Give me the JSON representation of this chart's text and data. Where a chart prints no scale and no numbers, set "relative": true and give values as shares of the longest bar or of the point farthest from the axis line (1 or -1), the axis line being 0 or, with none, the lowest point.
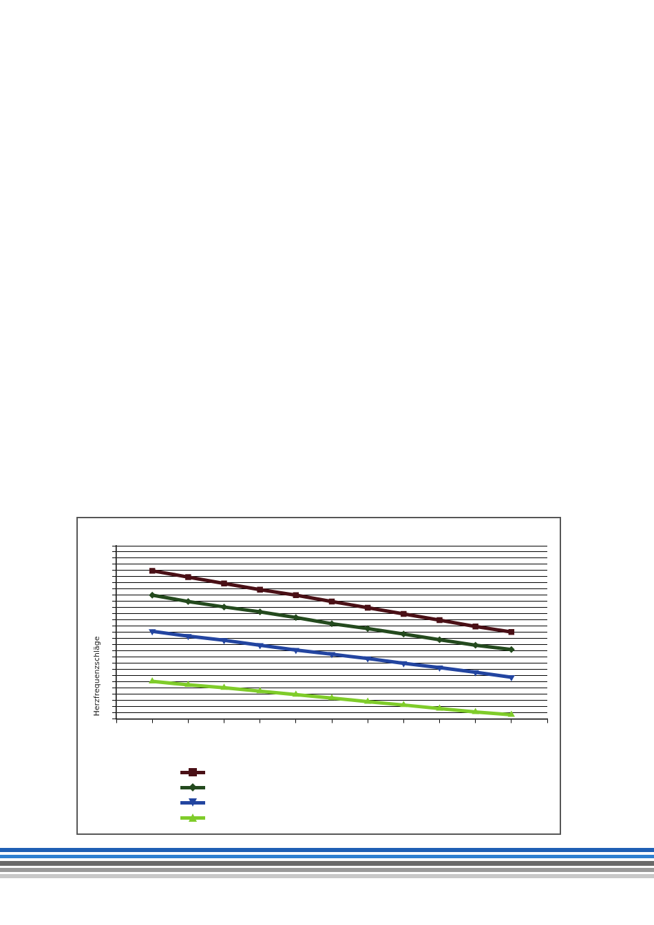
{
  "chart_data": {
    "type": "line",
    "ylabel": "Herzfrequenzschläge",
    "relative": true,
    "grid": "y",
    "categories": [
      null,
      null,
      null,
      null,
      null,
      null,
      null,
      null,
      null,
      null,
      null
    ],
    "series": [
      {
        "color": "#4a1016",
        "marker": "square",
        "values": [
          1,
          0.958,
          0.915,
          0.873,
          0.836,
          0.793,
          0.751,
          0.709,
          0.667,
          0.624,
          0.587
        ]
      },
      {
        "color": "#244a1e",
        "marker": "diamond",
        "values": [
          0.836,
          0.793,
          0.756,
          0.723,
          0.685,
          0.643,
          0.61,
          0.573,
          0.535,
          0.498,
          0.469
        ]
      },
      {
        "color": "#2345a0",
        "marker": "triangle-down",
        "values": [
          0.592,
          0.559,
          0.531,
          0.498,
          0.465,
          0.437,
          0.408,
          0.376,
          0.347,
          0.315,
          0.282
        ]
      },
      {
        "color": "#7fcc2a",
        "marker": "triangle",
        "values": [
          0.254,
          0.23,
          0.211,
          0.188,
          0.164,
          0.141,
          0.117,
          0.094,
          0.07,
          0.047,
          0.028
        ]
      }
    ]
  }
}
